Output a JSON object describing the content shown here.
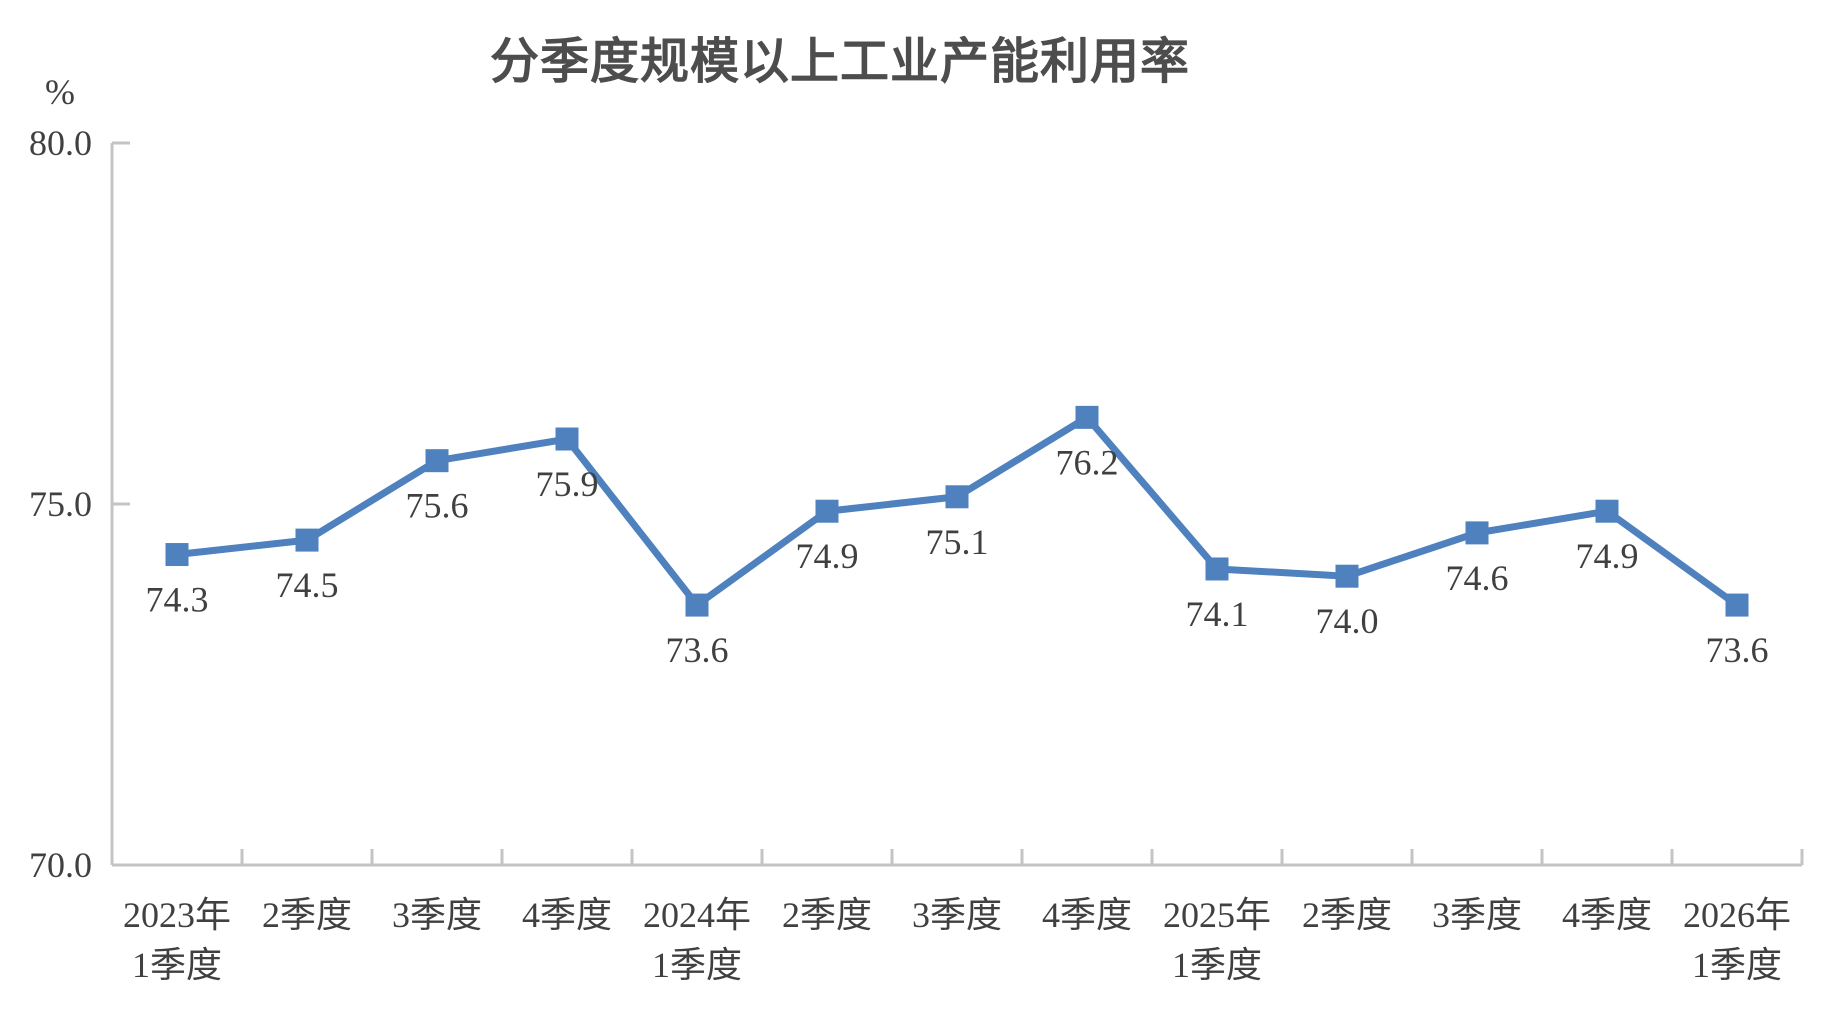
{
  "chart_data": {
    "type": "line",
    "title": "分季度规模以上工业产能利用率",
    "ylabel_unit": "%",
    "categories": [
      "2023年\n1季度",
      "2季度",
      "3季度",
      "4季度",
      "2024年\n1季度",
      "2季度",
      "3季度",
      "4季度",
      "2025年\n1季度",
      "2季度",
      "3季度",
      "4季度",
      "2026年\n1季度"
    ],
    "values": [
      74.3,
      74.5,
      75.6,
      75.9,
      73.6,
      74.9,
      75.1,
      76.2,
      74.1,
      74.0,
      74.6,
      74.9,
      73.6
    ],
    "data_labels": [
      "74.3",
      "74.5",
      "75.6",
      "75.9",
      "73.6",
      "74.9",
      "75.1",
      "76.2",
      "74.1",
      "74.0",
      "74.6",
      "74.9",
      "73.6"
    ],
    "data_labels_position": "below",
    "marker": "square",
    "grid": false,
    "legend_position": "none",
    "y_axis": {
      "min": 70,
      "max": 80,
      "ticks": [
        {
          "value": 80,
          "label": "80.0"
        },
        {
          "value": 75,
          "label": "75.0"
        },
        {
          "value": 70,
          "label": "70.0"
        }
      ]
    },
    "colors": {
      "series": "#4e81bd",
      "axis": "#c4c4c4",
      "text": "#404040",
      "title": "#4d4d4d"
    }
  }
}
